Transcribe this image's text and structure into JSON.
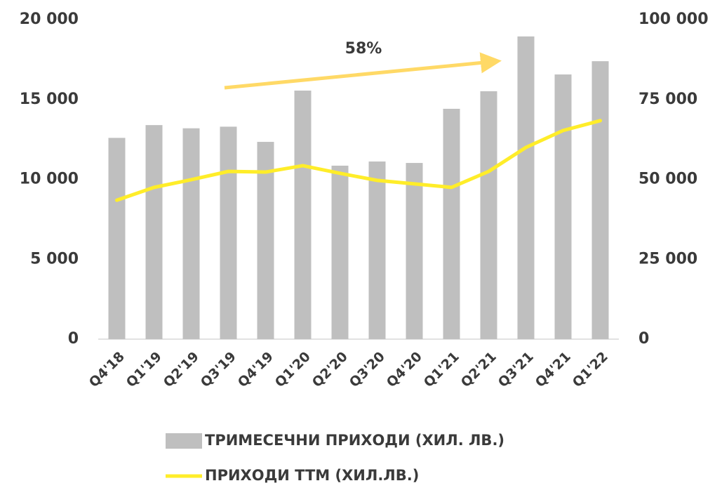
{
  "chart_data": {
    "type": "bar",
    "categories": [
      "Q4'18",
      "Q1'19",
      "Q2'19",
      "Q3'19",
      "Q4'19",
      "Q1'20",
      "Q2'20",
      "Q3'20",
      "Q4'20",
      "Q1'21",
      "Q2'21",
      "Q3'21",
      "Q4'21",
      "Q1'22"
    ],
    "series": [
      {
        "name": "ТРИМЕСЕЧНИ ПРИХОДИ (ХИЛ. ЛВ.)",
        "type": "bar",
        "color": "#bfbfbf",
        "values": [
          12600,
          13400,
          13200,
          13300,
          12350,
          15560,
          10860,
          11120,
          11030,
          14420,
          15520,
          18950,
          16570,
          17400
        ]
      },
      {
        "name": "ПРИХОДИ TTM (ХИЛ.ЛВ.)",
        "type": "line",
        "axis": "y2",
        "color": "#ffed29",
        "values": [
          43500,
          47500,
          49900,
          52500,
          52300,
          54300,
          51900,
          49700,
          48600,
          47500,
          52500,
          60000,
          65300,
          68400
        ]
      }
    ],
    "ylim": [
      0,
      20000
    ],
    "yticks": [
      0,
      {
        "value": 5000,
        "label": "5 000"
      },
      {
        "value": 10000,
        "label": "10 000"
      },
      {
        "value": 15000,
        "label": "15 000"
      },
      {
        "value": 20000,
        "label": "20 000"
      }
    ],
    "y2lim": [
      0,
      100000
    ],
    "y2ticks": [
      0,
      {
        "value": 25000,
        "label": "25 000"
      },
      {
        "value": 50000,
        "label": "50 000"
      },
      {
        "value": 75000,
        "label": "75 000"
      },
      {
        "value": 100000,
        "label": "100 000"
      }
    ],
    "annotation": "58%",
    "legend": "bottom"
  }
}
